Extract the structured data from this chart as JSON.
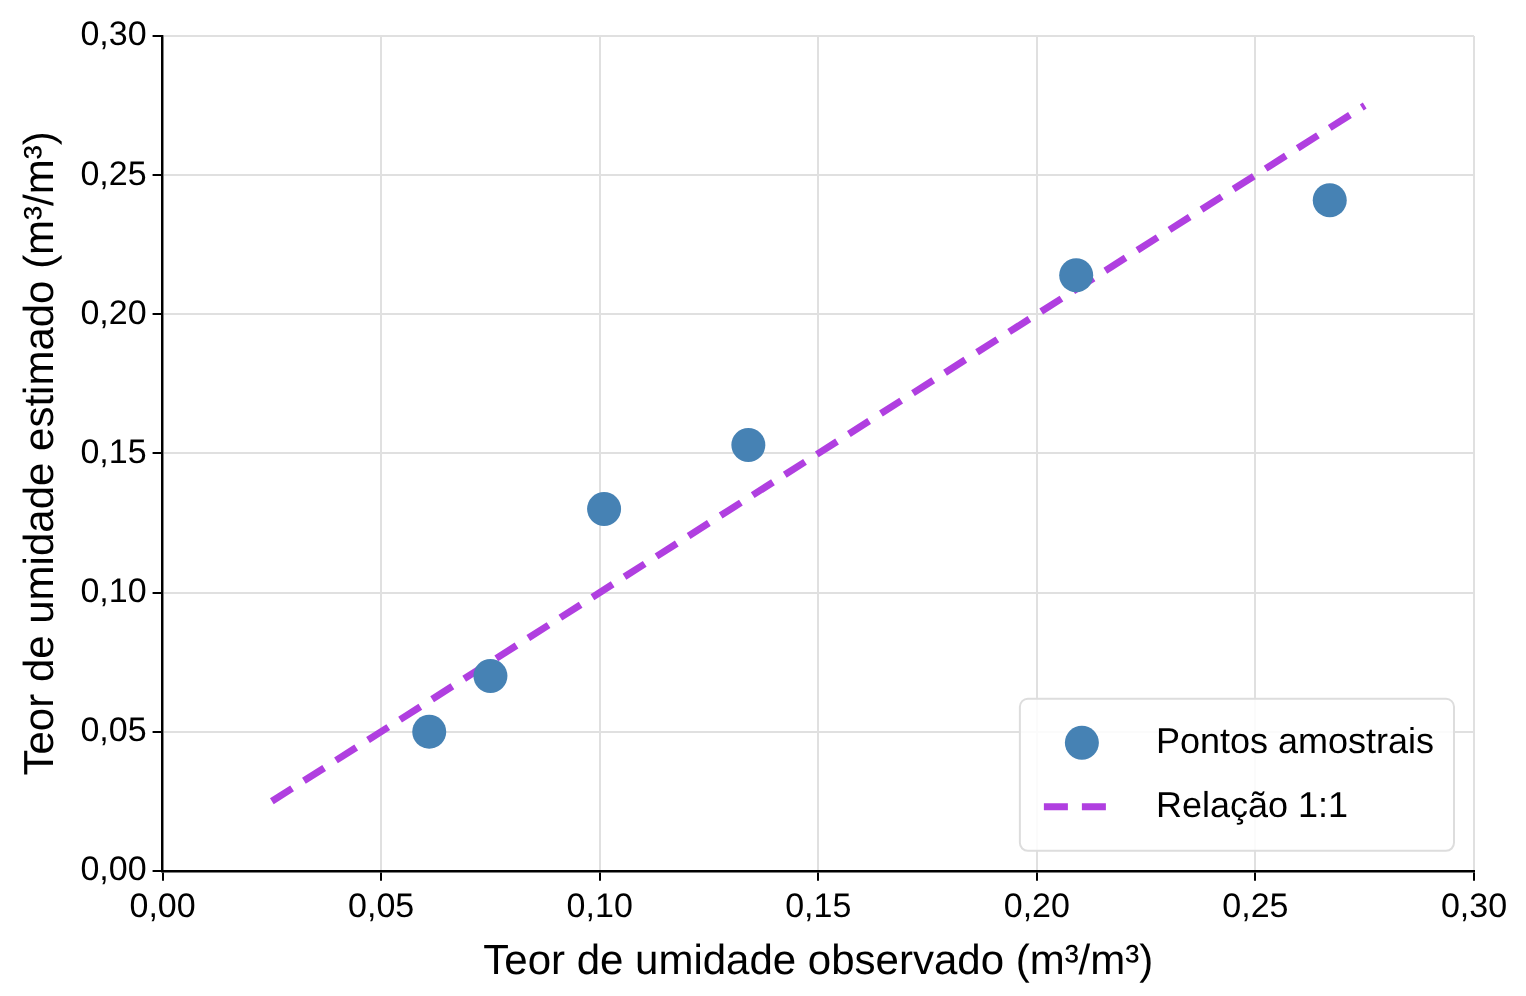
{
  "chart_data": {
    "type": "scatter",
    "xlabel": "Teor de umidade observado (m³/m³)",
    "ylabel": "Teor de umidade estimado (m³/m³)",
    "xlim": [
      0,
      0.3
    ],
    "ylim": [
      0,
      0.3
    ],
    "xticks": [
      {
        "value": 0,
        "label": "0,00"
      },
      {
        "value": 0.05,
        "label": "0,05"
      },
      {
        "value": 0.1,
        "label": "0,10"
      },
      {
        "value": 0.15,
        "label": "0,15"
      },
      {
        "value": 0.2,
        "label": "0,20"
      },
      {
        "value": 0.25,
        "label": "0,25"
      },
      {
        "value": 0.3,
        "label": "0,30"
      }
    ],
    "yticks": [
      {
        "value": 0,
        "label": "0,00"
      },
      {
        "value": 0.05,
        "label": "0,05"
      },
      {
        "value": 0.1,
        "label": "0,10"
      },
      {
        "value": 0.15,
        "label": "0,15"
      },
      {
        "value": 0.2,
        "label": "0,20"
      },
      {
        "value": 0.25,
        "label": "0,25"
      },
      {
        "value": 0.3,
        "label": "0,30"
      }
    ],
    "grid": true,
    "legend": "bottom right",
    "marker": "circle",
    "series": [
      {
        "name": "Pontos amostrais",
        "type": "scatter",
        "color": "#4682b4",
        "x": [
          0.061,
          0.075,
          0.101,
          0.134,
          0.209,
          0.267
        ],
        "values": [
          0.05,
          0.07,
          0.13,
          0.153,
          0.214,
          0.241
        ]
      },
      {
        "name": "Relação 1:1",
        "type": "line",
        "color": "#b03fe0",
        "line_style": "dashed",
        "marker": "none",
        "x": [
          0.025,
          0.275
        ],
        "values": [
          0.025,
          0.275
        ]
      }
    ]
  }
}
